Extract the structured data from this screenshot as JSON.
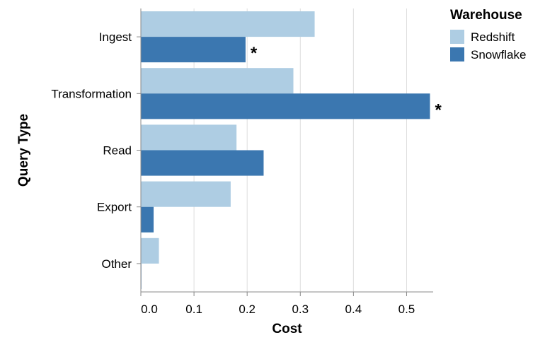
{
  "chart_data": {
    "type": "bar",
    "orientation": "horizontal",
    "categories": [
      "Ingest",
      "Transformation",
      "Read",
      "Export",
      "Other"
    ],
    "series": [
      {
        "name": "Redshift",
        "color": "#aecde3",
        "values": [
          0.327,
          0.287,
          0.18,
          0.169,
          0.034
        ]
      },
      {
        "name": "Snowflake",
        "color": "#3b77b0",
        "values": [
          0.197,
          0.544,
          0.231,
          0.024,
          0.001
        ]
      }
    ],
    "annotations": [
      {
        "category": "Ingest",
        "series": "Snowflake",
        "text": "*"
      },
      {
        "category": "Transformation",
        "series": "Snowflake",
        "text": "*"
      }
    ],
    "xlabel": "Cost",
    "ylabel": "Query Type",
    "xlim": [
      0,
      0.55
    ],
    "xticks": [
      0,
      0.1,
      0.2,
      0.3,
      0.4,
      0.5
    ],
    "xtick_labels": [
      "0.0",
      "0.1",
      "0.2",
      "0.3",
      "0.4",
      "0.5"
    ],
    "grid": true,
    "legend": {
      "title": "Warehouse",
      "position": "top-right"
    }
  }
}
